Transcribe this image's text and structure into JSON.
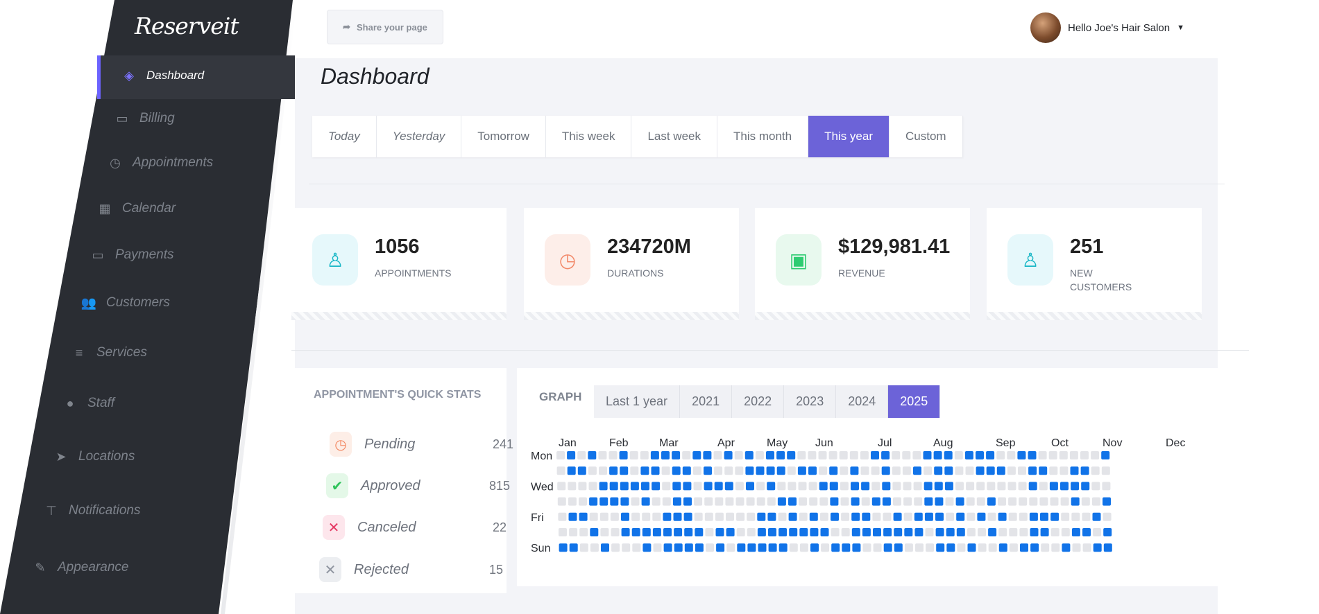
{
  "sidebar": {
    "logo": "Reserveit",
    "items": [
      {
        "label": "Dashboard",
        "icon": "cube-icon",
        "glyph": "◈",
        "active": true
      },
      {
        "label": "Billing",
        "icon": "credit-card-icon",
        "glyph": "▭"
      },
      {
        "label": "Appointments",
        "icon": "clock-icon",
        "glyph": "◷"
      },
      {
        "label": "Calendar",
        "icon": "calendar-icon",
        "glyph": "▦"
      },
      {
        "label": "Payments",
        "icon": "credit-card-icon",
        "glyph": "▭"
      },
      {
        "label": "Customers",
        "icon": "users-icon",
        "glyph": "👥"
      },
      {
        "label": "Services",
        "icon": "list-icon",
        "glyph": "≡"
      },
      {
        "label": "Staff",
        "icon": "user-icon",
        "glyph": "●"
      },
      {
        "label": "Locations",
        "icon": "location-arrow-icon",
        "glyph": "➤"
      },
      {
        "label": "Notifications",
        "icon": "sitemap-icon",
        "glyph": "⊤"
      },
      {
        "label": "Appearance",
        "icon": "brush-icon",
        "glyph": "✎"
      }
    ]
  },
  "header": {
    "share_label": "Share your page",
    "user_label": "Hello Joe's Hair Salon"
  },
  "page_title": "Dashboard",
  "range_tabs": [
    "Today",
    "Yesterday",
    "Tomorrow",
    "This week",
    "Last week",
    "This month",
    "This year",
    "Custom"
  ],
  "range_active": "This year",
  "stats": [
    {
      "value": "1056",
      "label": "APPOINTMENTS",
      "icon": "user-icon",
      "color": "#19b7c6",
      "bg": "#e6f8fb"
    },
    {
      "value": "234720M",
      "label": "DURATIONS",
      "icon": "clock-icon",
      "color": "#f28a6b",
      "bg": "#fdeee9"
    },
    {
      "value": "$129,981.41",
      "label": "REVENUE",
      "icon": "wallet-icon",
      "color": "#2ecc71",
      "bg": "#e8f9ee"
    },
    {
      "value": "251",
      "label": "NEW CUSTOMERS",
      "icon": "user-icon",
      "color": "#19b7c6",
      "bg": "#e6f8fb"
    }
  ],
  "quick_stats": {
    "title": "APPOINTMENT'S QUICK STATS",
    "rows": [
      {
        "label": "Pending",
        "value": "241",
        "icon": "clock-icon",
        "color": "#f3865f",
        "bg": "#fdeee7",
        "glyph": "◷"
      },
      {
        "label": "Approved",
        "value": "815",
        "icon": "check-icon",
        "color": "#2ec35a",
        "bg": "#e4f8e8",
        "glyph": "✔"
      },
      {
        "label": "Canceled",
        "value": "22",
        "icon": "x-icon",
        "color": "#e53964",
        "bg": "#fde6ec",
        "glyph": "✕"
      },
      {
        "label": "Rejected",
        "value": "15",
        "icon": "x-icon",
        "color": "#8f95a0",
        "bg": "#eceef1",
        "glyph": "✕"
      }
    ]
  },
  "graph": {
    "title": "GRAPH",
    "year_tabs": [
      "Last 1 year",
      "2021",
      "2022",
      "2023",
      "2024",
      "2025"
    ],
    "year_active": "2025",
    "months": [
      "Jan",
      "Feb",
      "Mar",
      "Apr",
      "May",
      "Jun",
      "Jul",
      "Aug",
      "Sep",
      "Oct",
      "Nov",
      "Dec"
    ],
    "days": [
      "Mon",
      "",
      "Wed",
      "",
      "Fri",
      "",
      "Sun"
    ],
    "colors": {
      "active": "#1173e8",
      "empty": "#e3e4e8"
    }
  }
}
